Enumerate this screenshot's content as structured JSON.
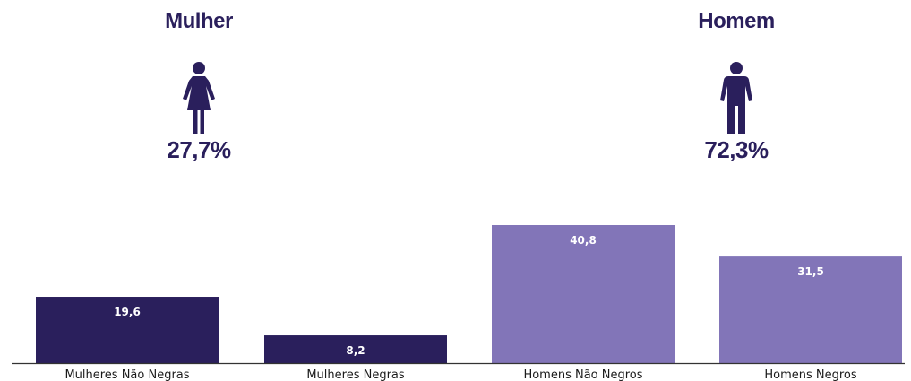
{
  "gender_summary": {
    "female": {
      "title": "Mulher",
      "percent": "27,7%",
      "icon": "woman-icon"
    },
    "male": {
      "title": "Homem",
      "percent": "72,3%",
      "icon": "man-icon"
    }
  },
  "colors": {
    "dark": "#2a1f5c",
    "light": "#8275b8",
    "baseline": "#333333"
  },
  "chart_data": {
    "type": "bar",
    "categories": [
      "Mulheres Não Negras",
      "Mulheres Negras",
      "Homens Não Negros",
      "Homens Negros"
    ],
    "values": [
      19.6,
      8.2,
      40.8,
      31.5
    ],
    "value_labels": [
      "19,6",
      "8,2",
      "40,8",
      "31,5"
    ],
    "bar_colors": [
      "#2a1f5c",
      "#2a1f5c",
      "#8275b8",
      "#8275b8"
    ],
    "title": "",
    "xlabel": "",
    "ylabel": "",
    "ylim": [
      0,
      40.8
    ],
    "grid": false,
    "legend": "none"
  }
}
